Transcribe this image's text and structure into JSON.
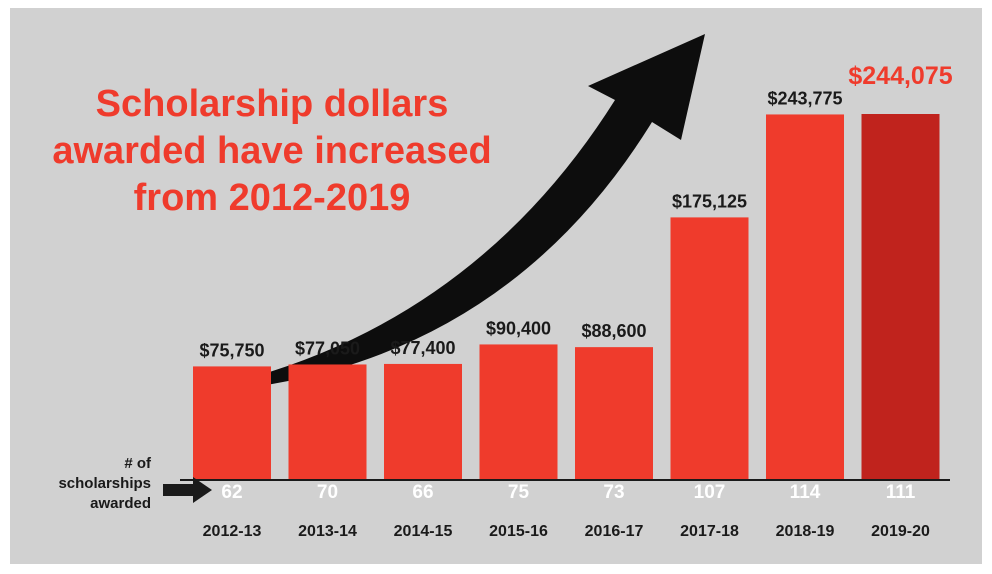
{
  "chart_data": {
    "type": "bar",
    "title_lines": [
      "Scholarship dollars",
      "awarded have increased",
      "from 2012-2019"
    ],
    "categories": [
      "2012-13",
      "2013-14",
      "2014-15",
      "2015-16",
      "2016-17",
      "2017-18",
      "2018-19",
      "2019-20"
    ],
    "values": [
      75750,
      77050,
      77400,
      90400,
      88600,
      175125,
      243775,
      244075
    ],
    "value_labels": [
      "$75,750",
      "$77,050",
      "$77,400",
      "$90,400",
      "$88,600",
      "$175,125",
      "$243,775",
      "$244,075"
    ],
    "counts": [
      62,
      70,
      66,
      75,
      73,
      107,
      114,
      111
    ],
    "count_label_lines": [
      "# of",
      "scholarships",
      "awarded"
    ],
    "highlight_index": 7,
    "ylim": [
      0,
      260000
    ],
    "colors": {
      "bar": "#ef3b2c",
      "highlight_bar": "#c0231d",
      "background": "#d1d1d1",
      "title": "#ef3b2c",
      "arrow": "#0d0d0d"
    }
  }
}
